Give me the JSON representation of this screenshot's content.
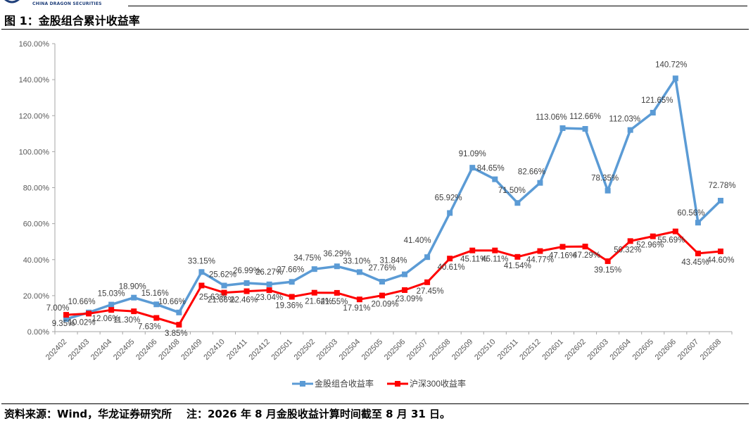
{
  "header": {
    "company_en": "CHINA DRAGON SECURITIES",
    "figure_title": "图 1：金股组合累计收益率"
  },
  "footer": {
    "source_note": "资料来源：Wind，华龙证券研究所    注：2026 年 8 月金股收益计算时间截至 8 月 31 日。"
  },
  "colors": {
    "series1": "#5B9BD5",
    "series2": "#FF0000",
    "axis": "#A6A6A6",
    "logo": "#1f3f7a"
  },
  "chart_data": {
    "type": "line",
    "title": "",
    "xlabel": "",
    "ylabel": "",
    "ylim": [
      0,
      160
    ],
    "yticks": [
      "0.00%",
      "20.00%",
      "40.00%",
      "60.00%",
      "80.00%",
      "100.00%",
      "120.00%",
      "140.00%",
      "160.00%"
    ],
    "grid": false,
    "legend_position": "bottom",
    "categories": [
      "202402",
      "202403",
      "202404",
      "202405",
      "202406",
      "202408",
      "202409",
      "202410",
      "202411",
      "202412",
      "202501",
      "202502",
      "202503",
      "202504",
      "202505",
      "202506",
      "202507",
      "202508",
      "202509",
      "202510",
      "202511",
      "202512",
      "202601",
      "202602",
      "202603",
      "202604",
      "202605",
      "202606",
      "202607",
      "202608"
    ],
    "series": [
      {
        "name": "金股组合收益率",
        "values": [
          7.0,
          10.66,
          15.03,
          18.9,
          15.16,
          10.66,
          33.15,
          25.62,
          26.99,
          26.27,
          27.66,
          34.75,
          36.29,
          33.1,
          27.76,
          31.84,
          41.4,
          65.92,
          91.09,
          84.65,
          71.5,
          82.66,
          113.06,
          112.66,
          78.35,
          112.03,
          121.65,
          140.72,
          60.56,
          72.78
        ],
        "labels": [
          "7.00%",
          "10.66%",
          "15.03%",
          "18.90%",
          "15.16%",
          "10.66%",
          "33.15%",
          "25.62%",
          "26.99%",
          "26.27%",
          "27.66%",
          "34.75%",
          "36.29%",
          "33.10%",
          "27.76%",
          "31.84%",
          "41.40%",
          "65.92%",
          "91.09%",
          "84.65%",
          "71.50%",
          "82.66%",
          "113.06%",
          "112.66%",
          "78.35%",
          "112.03%",
          "121.65%",
          "140.72%",
          "60.56%",
          "72.78%"
        ]
      },
      {
        "name": "沪深300收益率",
        "values": [
          9.35,
          10.02,
          12.06,
          11.3,
          7.63,
          3.85,
          25.63,
          21.66,
          22.46,
          23.04,
          19.36,
          21.64,
          21.55,
          17.91,
          20.09,
          23.09,
          27.45,
          40.61,
          45.11,
          45.11,
          41.54,
          44.77,
          47.16,
          47.29,
          39.15,
          50.32,
          52.96,
          55.69,
          43.45,
          44.6
        ],
        "labels": [
          "9.35%",
          "10.02%",
          "12.06%",
          "11.30%",
          "7.63%",
          "3.85%",
          "25.63%",
          "21.66%",
          "22.46%",
          "23.04%",
          "19.36%",
          "21.64%",
          "21.55%",
          "17.91%",
          "20.09%",
          "23.09%",
          "27.45%",
          "40.61%",
          "45.11%",
          "45.11%",
          "41.54%",
          "44.77%",
          "47.16%",
          "47.29%",
          "39.15%",
          "50.32%",
          "52.96%",
          "55.69%",
          "43.45%",
          "44.60%"
        ]
      }
    ]
  }
}
